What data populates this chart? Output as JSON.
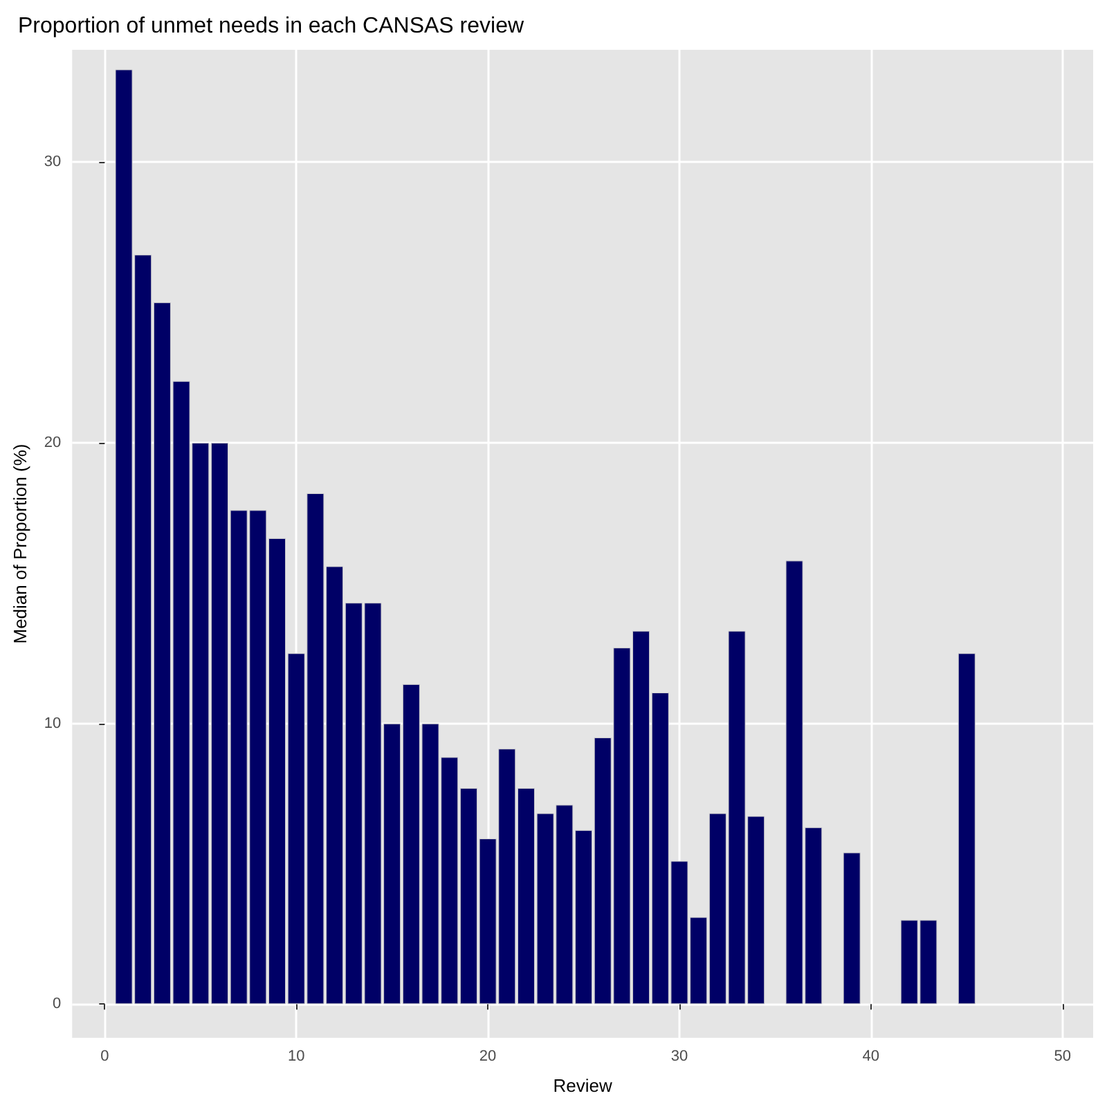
{
  "chart_data": {
    "type": "bar",
    "title": "Proportion of unmet needs in each CANSAS review",
    "xlabel": "Review",
    "ylabel": "Median of Proportion (%)",
    "x": [
      1,
      2,
      3,
      4,
      5,
      6,
      7,
      8,
      9,
      10,
      11,
      12,
      13,
      14,
      15,
      16,
      17,
      18,
      19,
      20,
      21,
      22,
      23,
      24,
      25,
      26,
      27,
      28,
      29,
      30,
      31,
      32,
      33,
      34,
      35,
      36,
      37,
      38,
      39,
      40,
      41,
      42,
      43,
      44,
      45
    ],
    "values": [
      33.3,
      26.7,
      25.0,
      22.2,
      20.0,
      20.0,
      17.6,
      17.6,
      16.6,
      12.5,
      18.2,
      15.6,
      14.3,
      14.3,
      10.0,
      11.4,
      10.0,
      8.8,
      7.7,
      5.9,
      9.1,
      7.7,
      6.8,
      7.1,
      6.2,
      9.5,
      12.7,
      13.3,
      11.1,
      5.1,
      3.1,
      6.8,
      13.3,
      6.7,
      null,
      15.8,
      6.3,
      null,
      5.4,
      null,
      null,
      3.0,
      3.0,
      null,
      12.5
    ],
    "color": "#000066",
    "xlim": [
      -1.7,
      51.6
    ],
    "xticks": [
      0,
      10,
      20,
      30,
      40,
      50
    ],
    "ylim": [
      -1.2,
      34.0
    ],
    "yticks": [
      0,
      10,
      20,
      30
    ],
    "grid": true
  }
}
